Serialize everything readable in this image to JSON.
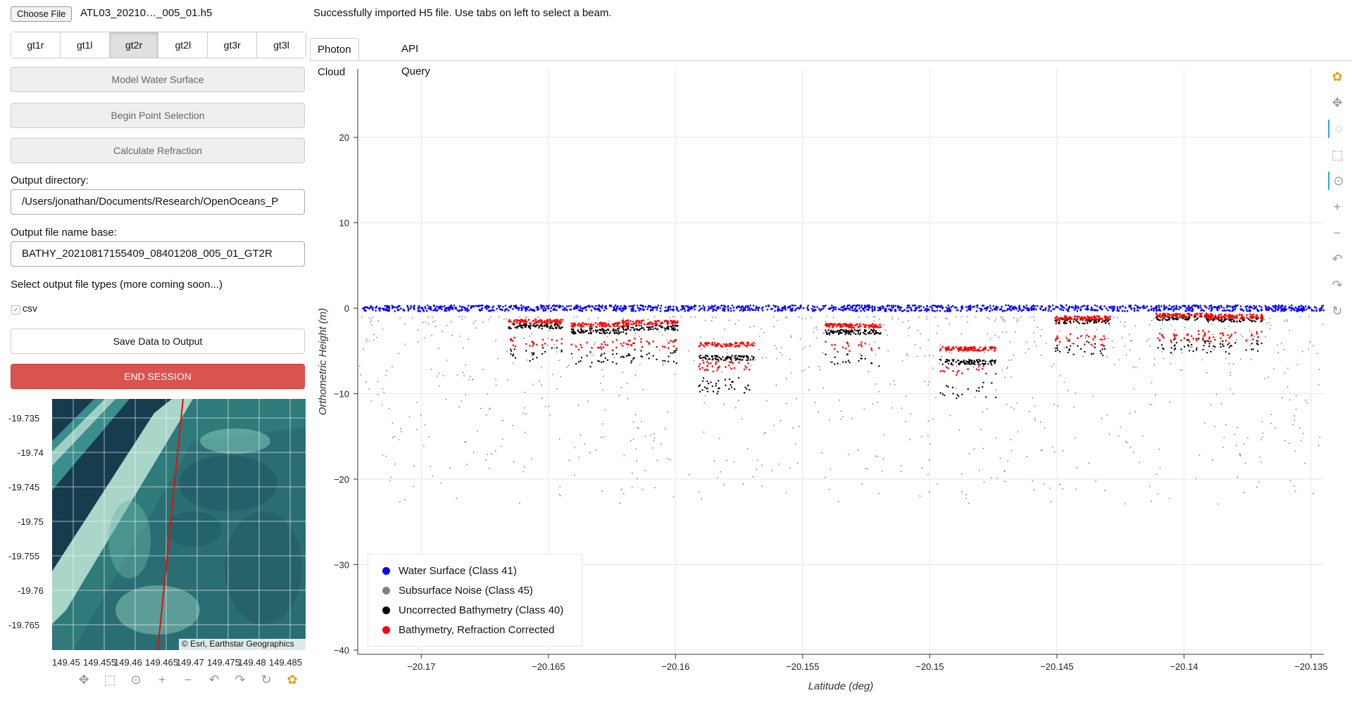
{
  "file": {
    "button": "Choose File",
    "name": "ATL03_20210…_005_01.h5"
  },
  "status": "Successfully imported H5 file. Use tabs on left to select a beam.",
  "beams": [
    "gt1r",
    "gt1l",
    "gt2r",
    "gt2l",
    "gt3r",
    "gt3l"
  ],
  "active_beam": "gt2r",
  "actions": {
    "model_water": "Model Water Surface",
    "begin_selection": "Begin Point Selection",
    "calc_refraction": "Calculate Refraction",
    "save": "Save Data to Output",
    "end_session": "END SESSION"
  },
  "output_dir": {
    "label": "Output directory:",
    "value": "/Users/jonathan/Documents/Research/OpenOceans_P"
  },
  "output_name": {
    "label": "Output file name base:",
    "value": "BATHY_20210817155409_08401208_005_01_GT2R"
  },
  "filetypes": {
    "label": "Select output file types (more coming soon...)",
    "option": "csv",
    "checked": true
  },
  "map": {
    "attribution": "© Esri, Earthstar Geographics",
    "y_ticks": [
      "-19.735",
      "-19.74",
      "-19.745",
      "-19.75",
      "-19.755",
      "-19.76",
      "-19.765"
    ],
    "x_ticks": [
      "149.45",
      "149.455",
      "149.46",
      "149.465",
      "149.47",
      "149.475",
      "149.48",
      "149.485"
    ],
    "colors": {
      "water_dark": "#173c4d",
      "shallow": "#3d8f8a",
      "sand": "#9fcfc3",
      "track": "#e01010"
    }
  },
  "plot_tabs": [
    "Photon Cloud",
    "API Query"
  ],
  "active_plot_tab": "Photon Cloud",
  "chart_data": {
    "type": "scatter",
    "xlabel": "Latitude (deg)",
    "ylabel": "Orthometric Height (m)",
    "xlim": [
      -20.1725,
      -20.1345
    ],
    "ylim": [
      -40.5,
      28
    ],
    "x_ticks": [
      "-20.17",
      "-20.165",
      "-20.16",
      "-20.155",
      "-20.15",
      "-20.145",
      "-20.14",
      "-20.135"
    ],
    "y_ticks": [
      "20",
      "10",
      "0",
      "-10",
      "-20",
      "-30",
      "-40"
    ],
    "grid": true,
    "legend_position": "bottom-left",
    "series": [
      {
        "name": "Water Surface (Class 41)",
        "color": "#0000ff",
        "x": [
          -20.172,
          -20.16,
          -20.15,
          -20.14,
          -20.135
        ],
        "y": [
          0.2,
          0.1,
          0.1,
          0.0,
          0.1
        ]
      },
      {
        "name": "Subsurface Noise (Class 45)",
        "color": "#808080",
        "x": [
          -20.171,
          -20.168,
          -20.162,
          -20.154,
          -20.151,
          -20.148,
          -20.141,
          -20.136
        ],
        "y": [
          -9,
          -7,
          -13,
          -12,
          -15,
          -10,
          -11,
          -9
        ]
      },
      {
        "name": "Uncorrected Bathymetry (Class 40)",
        "color": "#000000",
        "x": [
          -20.1655,
          -20.163,
          -20.161,
          -20.158,
          -20.153,
          -20.1485,
          -20.144,
          -20.14,
          -20.138
        ],
        "y": [
          -1.8,
          -2.4,
          -2.0,
          -5.5,
          -2.5,
          -6.0,
          -1.2,
          -0.8,
          -1.0
        ]
      },
      {
        "name": "Bathymetry, Refraction Corrected",
        "color": "#ff0000",
        "x": [
          -20.1655,
          -20.163,
          -20.161,
          -20.158,
          -20.153,
          -20.1485,
          -20.144,
          -20.14,
          -20.138
        ],
        "y": [
          -1.3,
          -1.7,
          -1.4,
          -4.0,
          -1.8,
          -4.5,
          -0.9,
          -0.6,
          -0.7
        ]
      }
    ]
  },
  "tools": [
    "bokeh-logo-icon",
    "pan-icon",
    "lasso-select-icon",
    "box-zoom-icon",
    "wheel-zoom-icon",
    "zoom-in-icon",
    "zoom-out-icon",
    "undo-icon",
    "redo-icon",
    "reset-icon"
  ]
}
